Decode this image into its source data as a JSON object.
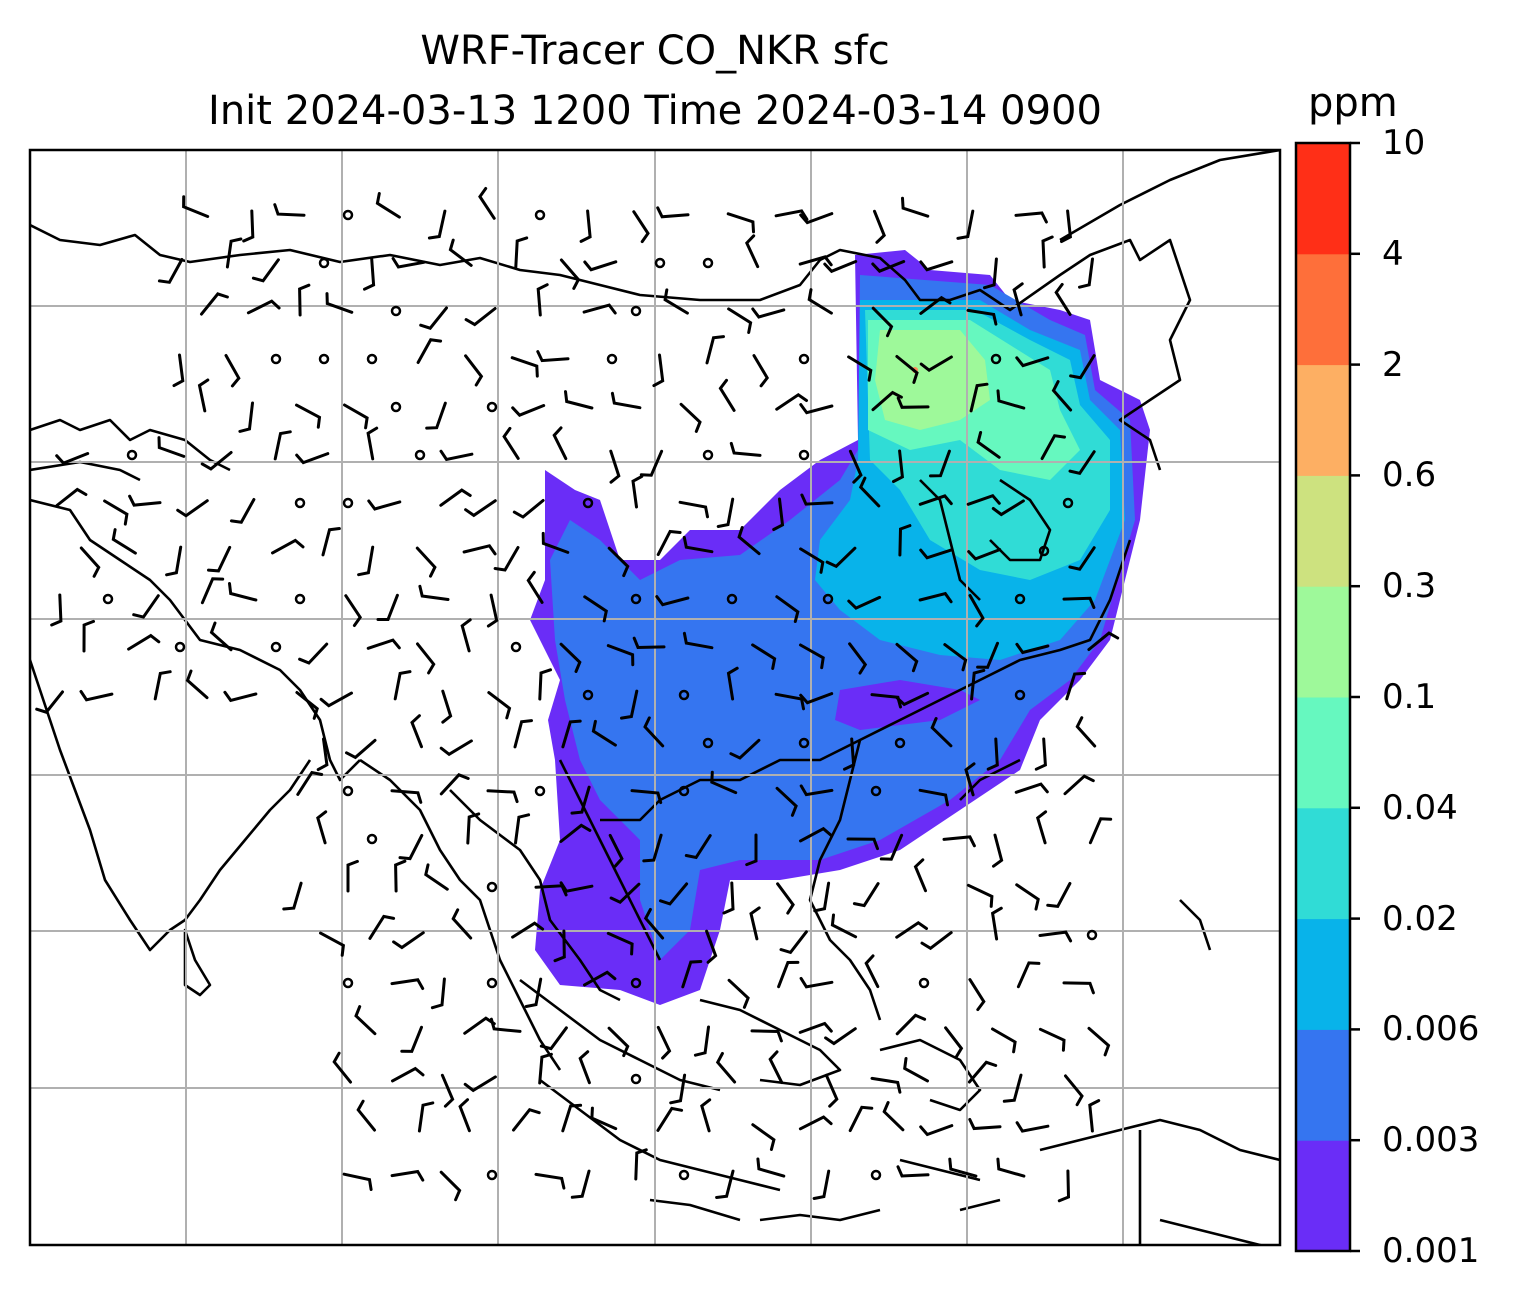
{
  "title": {
    "line1": "WRF-Tracer CO_NKR sfc",
    "line2": "Init 2024-03-13 1200 Time 2024-03-14 0900"
  },
  "colorbar": {
    "unit": "ppm",
    "ticks": [
      "10",
      "4",
      "2",
      "0.6",
      "0.3",
      "0.1",
      "0.04",
      "0.02",
      "0.006",
      "0.003",
      "0.001"
    ],
    "levels": [
      {
        "from": "0.001",
        "to": "0.003",
        "color": "#6a2df7"
      },
      {
        "from": "0.003",
        "to": "0.006",
        "color": "#3575f0"
      },
      {
        "from": "0.006",
        "to": "0.02",
        "color": "#08b3ea"
      },
      {
        "from": "0.02",
        "to": "0.04",
        "color": "#30dcd6"
      },
      {
        "from": "0.04",
        "to": "0.1",
        "color": "#66f8bf"
      },
      {
        "from": "0.1",
        "to": "0.3",
        "color": "#9ef99a"
      },
      {
        "from": "0.3",
        "to": "0.6",
        "color": "#cde27f"
      },
      {
        "from": "0.6",
        "to": "2",
        "color": "#fdaf63"
      },
      {
        "from": "2",
        "to": "4",
        "color": "#fe6f3a"
      },
      {
        "from": "4",
        "to": "10",
        "color": "#ff2f17"
      }
    ]
  },
  "map": {
    "projection": "regional map of East and Southeast Asia",
    "gridlines": true,
    "overlay": "surface wind barbs with calm circles",
    "colors": {
      "land_outline": "#000000",
      "grid": "#b0b0b0"
    }
  }
}
